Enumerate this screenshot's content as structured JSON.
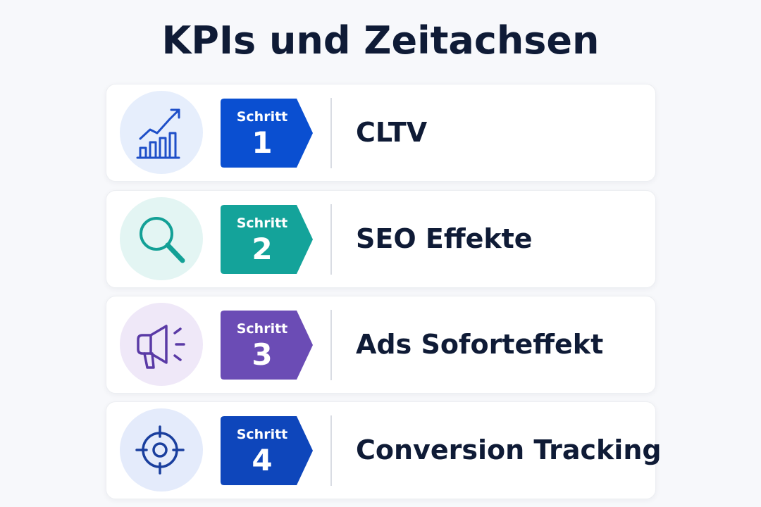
{
  "title": "KPIs und Zeitachsen",
  "steps": [
    {
      "badge_label": "Schritt",
      "number": "1",
      "title": "CLTV",
      "icon": "growth-chart-icon",
      "badge_color": "#0a4fd1",
      "icon_bg": "#e6eefc",
      "icon_color": "#1e4fc8"
    },
    {
      "badge_label": "Schritt",
      "number": "2",
      "title": "SEO Effekte",
      "icon": "magnifier-icon",
      "badge_color": "#14a39a",
      "icon_bg": "#e3f5f3",
      "icon_color": "#13a096"
    },
    {
      "badge_label": "Schritt",
      "number": "3",
      "title": "Ads Soforteffekt",
      "icon": "megaphone-icon",
      "badge_color": "#6b4cb5",
      "icon_bg": "#efe8f8",
      "icon_color": "#5a3aa6"
    },
    {
      "badge_label": "Schritt",
      "number": "4",
      "title": "Conversion Tracking",
      "icon": "target-icon",
      "badge_color": "#0e46bb",
      "icon_bg": "#e4ebfb",
      "icon_color": "#1a3f9e"
    }
  ]
}
